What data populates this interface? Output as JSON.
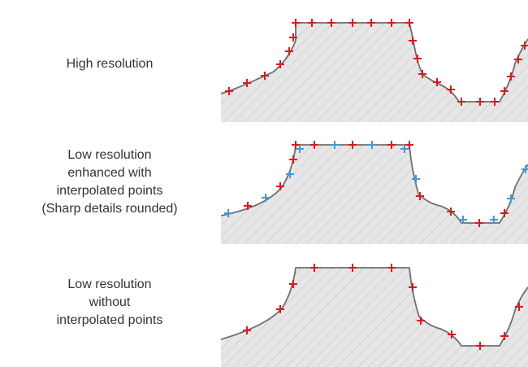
{
  "colors": {
    "fill": "#e6e6e6",
    "hatch": "#c2c2c2",
    "outline": "#6f6f6f",
    "sample_point": "#e0171c",
    "interpolated_point": "#3d9be0",
    "text": "#333333"
  },
  "rows": [
    {
      "label_lines": [
        "High resolution"
      ]
    },
    {
      "label_lines": [
        "Low resolution",
        "enhanced with",
        "interpolated points",
        "(Sharp details rounded)"
      ]
    },
    {
      "label_lines": [
        "Low resolution",
        "without",
        "interpolated points"
      ]
    }
  ]
}
